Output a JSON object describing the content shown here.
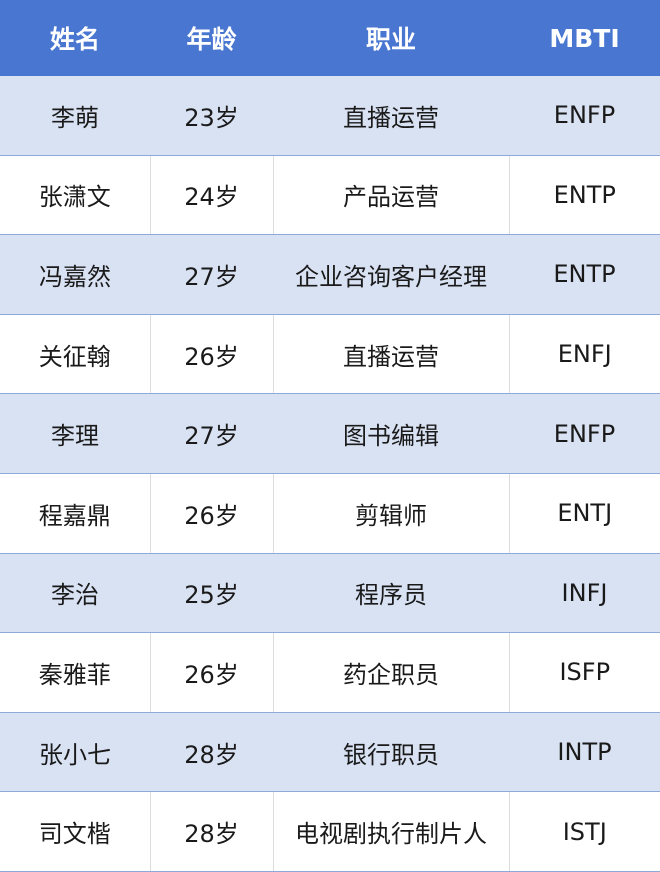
{
  "table": {
    "header": [
      "姓名",
      "年龄",
      "职业",
      "MBTI"
    ],
    "rows": [
      [
        "李萌",
        "23岁",
        "直播运营",
        "ENFP"
      ],
      [
        "张潇文",
        "24岁",
        "产品运营",
        "ENTP"
      ],
      [
        "冯嘉然",
        "27岁",
        "企业咨询客户经理",
        "ENTP"
      ],
      [
        "关征翰",
        "26岁",
        "直播运营",
        "ENFJ"
      ],
      [
        "李理",
        "27岁",
        "图书编辑",
        "ENFP"
      ],
      [
        "程嘉鼎",
        "26岁",
        "剪辑师",
        "ENTJ"
      ],
      [
        "李治",
        "25岁",
        "程序员",
        "INFJ"
      ],
      [
        "秦雅菲",
        "26岁",
        "药企职员",
        "ISFP"
      ],
      [
        "张小七",
        "28岁",
        "银行职员",
        "INTP"
      ],
      [
        "司文楷",
        "28岁",
        "电视剧执行制片人",
        "ISTJ"
      ]
    ]
  }
}
